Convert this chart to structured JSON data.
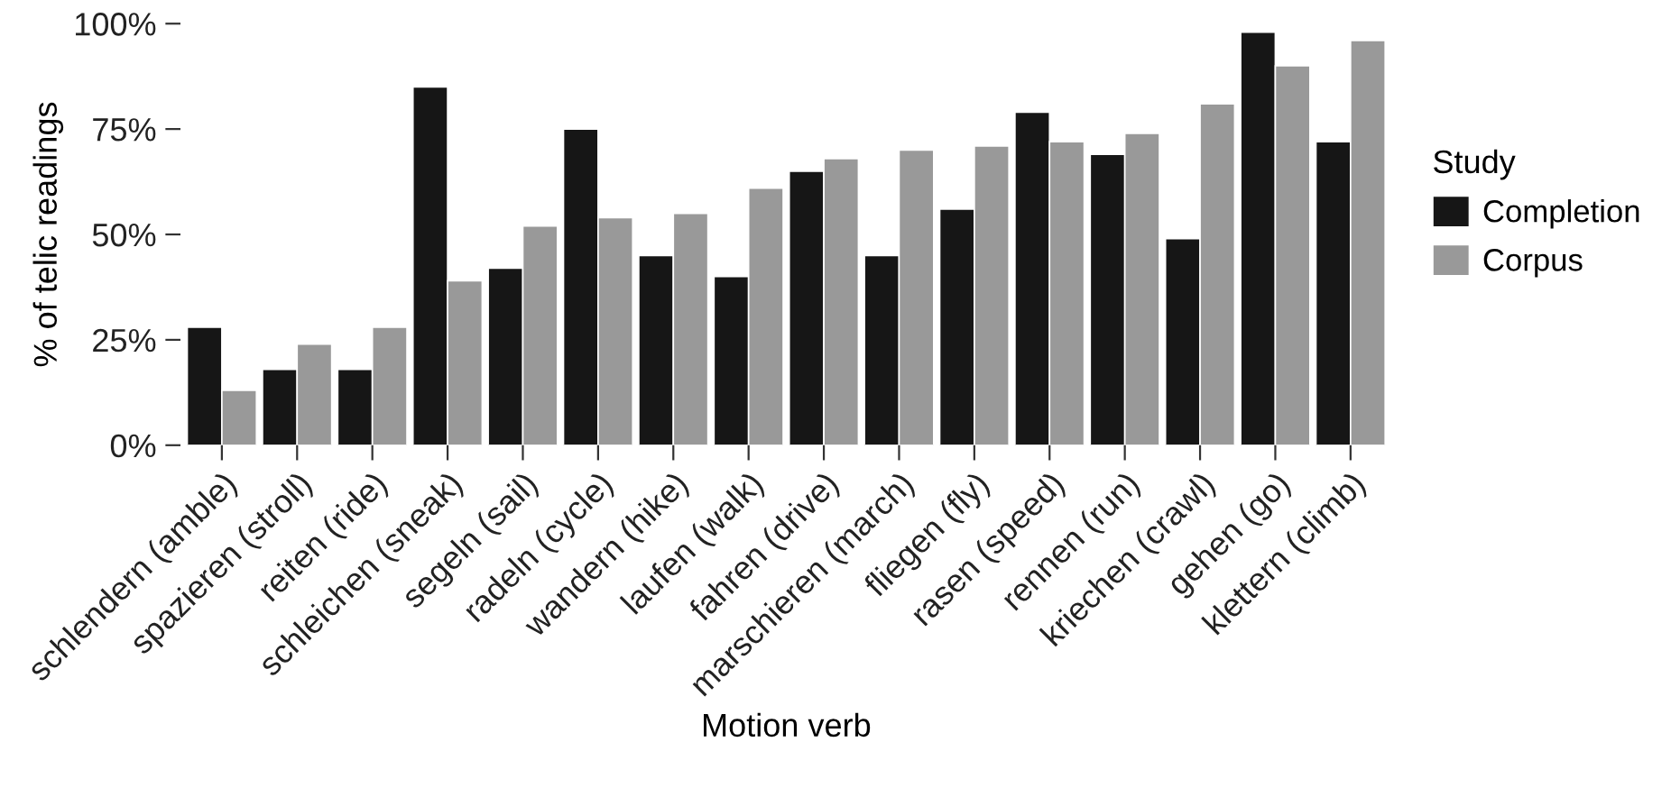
{
  "chart_data": {
    "type": "bar",
    "xlabel": "Motion verb",
    "ylabel": "% of telic readings",
    "legend_title": "Study",
    "legend": "right",
    "categories": [
      "schlendern (amble)",
      "spazieren (stroll)",
      "reiten (ride)",
      "schleichen (sneak)",
      "segeln (sail)",
      "radeln (cycle)",
      "wandern (hike)",
      "laufen (walk)",
      "fahren (drive)",
      "marschieren (march)",
      "fliegen (fly)",
      "rasen (speed)",
      "rennen (run)",
      "kriechen (crawl)",
      "gehen (go)",
      "klettern (climb)"
    ],
    "series": [
      {
        "name": "Completion",
        "color": "#161616",
        "values": [
          28,
          18,
          18,
          85,
          42,
          75,
          45,
          40,
          65,
          45,
          56,
          79,
          69,
          49,
          98,
          72
        ]
      },
      {
        "name": "Corpus",
        "color": "#999999",
        "values": [
          13,
          24,
          28,
          39,
          52,
          54,
          55,
          61,
          68,
          70,
          71,
          72,
          74,
          81,
          90,
          96
        ]
      }
    ],
    "ylim": [
      0,
      100
    ],
    "yticks": [
      {
        "value": 0,
        "label": "0%"
      },
      {
        "value": 25,
        "label": "25%"
      },
      {
        "value": 50,
        "label": "50%"
      },
      {
        "value": 75,
        "label": "75%"
      },
      {
        "value": 100,
        "label": "100%"
      }
    ],
    "grid": false
  }
}
